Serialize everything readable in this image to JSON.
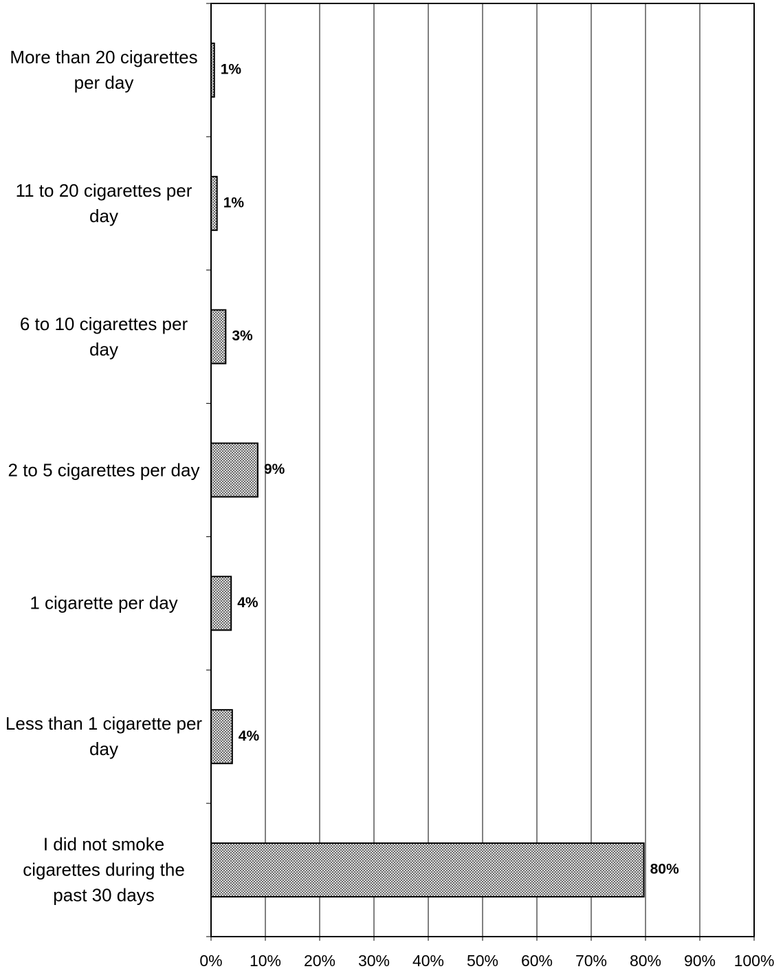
{
  "chart_data": {
    "type": "bar",
    "orientation": "horizontal",
    "categories": [
      "More than 20 cigarettes per day",
      "11 to 20 cigarettes per day",
      "6 to 10 cigarettes per day",
      "2 to 5 cigarettes per day",
      "1 cigarette per day",
      "Less than 1 cigarette per day",
      "I did not smoke cigarettes during the past 30 days"
    ],
    "values": [
      0.6,
      1.1,
      2.7,
      8.6,
      3.7,
      3.9,
      79.7
    ],
    "value_labels": [
      "1%",
      "1%",
      "3%",
      "9%",
      "4%",
      "4%",
      "80%"
    ],
    "color": "#bbbbbb",
    "xlim": [
      0,
      100
    ],
    "xticks": [
      {
        "value": 0,
        "label": "0%"
      },
      {
        "value": 10,
        "label": "10%"
      },
      {
        "value": 20,
        "label": "20%"
      },
      {
        "value": 30,
        "label": "30%"
      },
      {
        "value": 40,
        "label": "40%"
      },
      {
        "value": 50,
        "label": "50%"
      },
      {
        "value": 60,
        "label": "60%"
      },
      {
        "value": 70,
        "label": "70%"
      },
      {
        "value": 80,
        "label": "80%"
      },
      {
        "value": 90,
        "label": "90%"
      },
      {
        "value": 100,
        "label": "100%"
      }
    ],
    "grid": true
  }
}
